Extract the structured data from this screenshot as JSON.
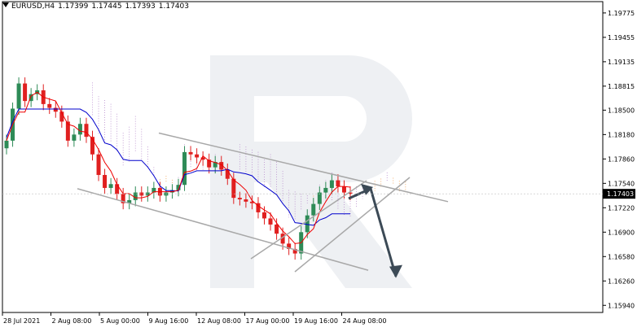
{
  "header": {
    "symbol": "EURUSD,H4",
    "open": "1.17399",
    "high": "1.17445",
    "low": "1.17393",
    "close": "1.17403"
  },
  "chart_data": {
    "type": "candlestick",
    "symbol": "EURUSD",
    "timeframe": "H4",
    "current_price": "1.17403",
    "price_ticks": [
      "1.19775",
      "1.19455",
      "1.19135",
      "1.18815",
      "1.18500",
      "1.18180",
      "1.17860",
      "1.17540",
      "1.17220",
      "1.16900",
      "1.16580",
      "1.16260",
      "1.15940"
    ],
    "ylim": [
      1.159,
      1.1987
    ],
    "time_ticks": [
      "28 Jul 2021",
      "2 Aug 08:00",
      "5 Aug 00:00",
      "9 Aug 16:00",
      "12 Aug 08:00",
      "17 Aug 00:00",
      "19 Aug 16:00",
      "24 Aug 08:00"
    ],
    "series": [
      {
        "type": "candles",
        "approx_closes": [
          1.181,
          1.1852,
          1.1885,
          1.1862,
          1.1871,
          1.1876,
          1.1858,
          1.1853,
          1.1848,
          1.1835,
          1.181,
          1.1818,
          1.1832,
          1.1815,
          1.1792,
          1.1765,
          1.1748,
          1.1753,
          1.174,
          1.1728,
          1.1732,
          1.1742,
          1.1738,
          1.1742,
          1.1748,
          1.1738,
          1.1742,
          1.1745,
          1.1752,
          1.1795,
          1.1792,
          1.1788,
          1.1785,
          1.1775,
          1.1782,
          1.1772,
          1.176,
          1.1735,
          1.1733,
          1.173,
          1.1728,
          1.1716,
          1.1708,
          1.17,
          1.1688,
          1.1675,
          1.1668,
          1.1662,
          1.169,
          1.1712,
          1.1727,
          1.1742,
          1.1748,
          1.1758,
          1.175,
          1.1742,
          1.174
        ]
      },
      {
        "name": "tenkan",
        "color": "#ee0000"
      },
      {
        "name": "kijun",
        "color": "#0000cc"
      },
      {
        "name": "senkou-span-a",
        "color": "#f0a050"
      },
      {
        "name": "senkou-span-b",
        "color": "#b88ccc"
      }
    ],
    "channel": {
      "upper_start": 1.182,
      "upper_end": 1.173,
      "lower_start": 1.1747,
      "lower_end": 1.164
    },
    "forecast": {
      "from": 1.1747,
      "to": 1.1632
    },
    "colors": {
      "bull": "#2e8b57",
      "bear": "#e02020",
      "arrow": "#3c4a56",
      "channel": "#a8a8a8",
      "price_tag_bg": "#000000",
      "watermark": "#e7e9ee"
    }
  }
}
